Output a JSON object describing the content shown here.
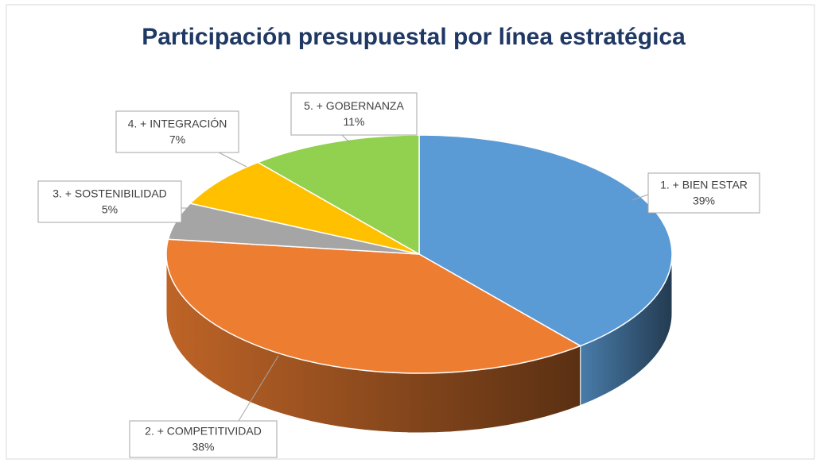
{
  "chart_data": {
    "type": "pie3d",
    "title": "Participación presupuestal por línea estratégica",
    "categories": [
      "1. + BIEN ESTAR",
      "2. + COMPETITIVIDAD",
      "3. + SOSTENIBILIDAD",
      "4. + INTEGRACIÓN",
      "5. + GOBERNANZA"
    ],
    "values": [
      39,
      38,
      5,
      7,
      11
    ],
    "value_labels": [
      "39%",
      "38%",
      "5%",
      "7%",
      "11%"
    ],
    "colors": [
      "#5b9bd5",
      "#ed7d31",
      "#a5a5a5",
      "#ffc000",
      "#92d050"
    ]
  }
}
